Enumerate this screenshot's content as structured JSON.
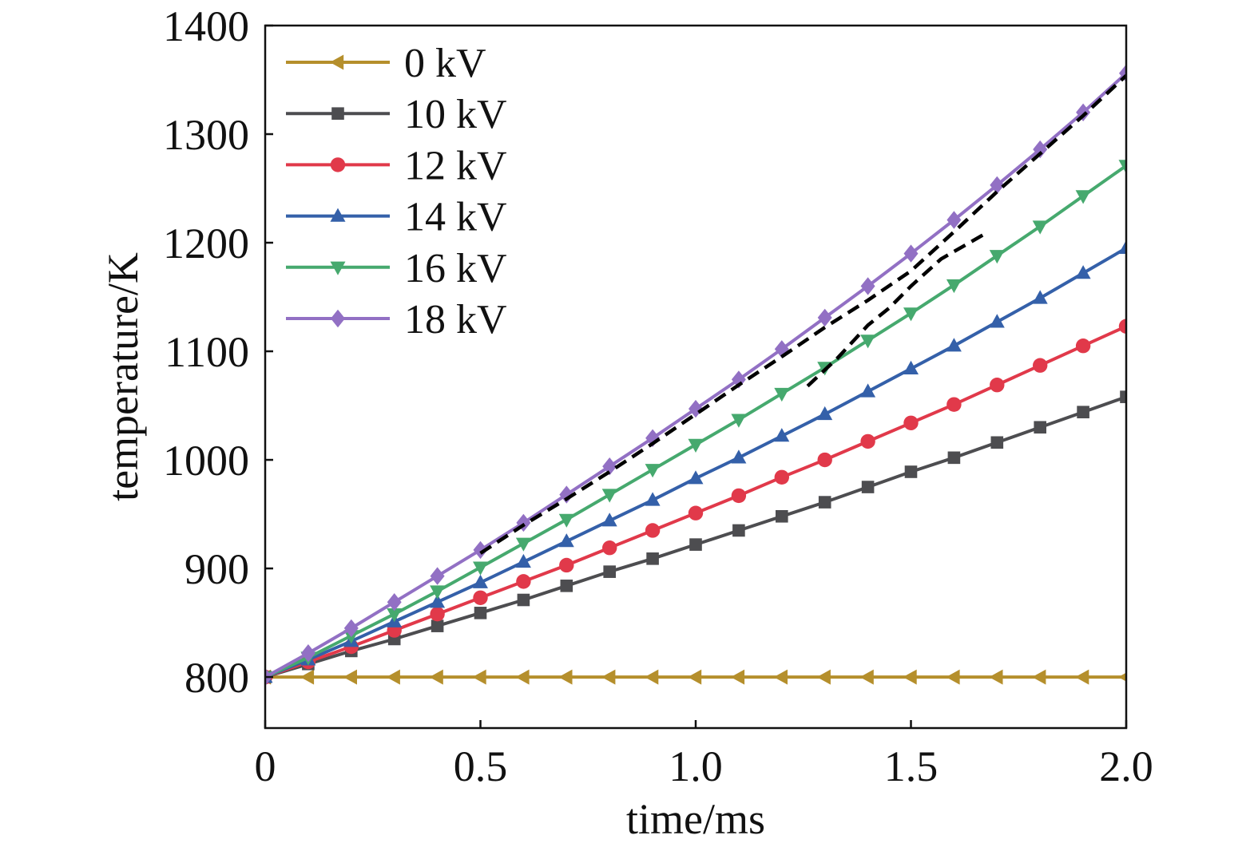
{
  "chart_data": {
    "type": "line",
    "xlabel": "time/ms",
    "ylabel": "temperature/K",
    "xlim": [
      0,
      2.0
    ],
    "ylim": [
      753,
      1400
    ],
    "x_ticks": [
      0,
      0.5,
      1.0,
      1.5,
      2.0
    ],
    "x_tick_labels": [
      "0",
      "0.5",
      "1.0",
      "1.5",
      "2.0"
    ],
    "y_ticks": [
      800,
      900,
      1000,
      1100,
      1200,
      1300,
      1400
    ],
    "y_tick_labels": [
      "800",
      "900",
      "1000",
      "1100",
      "1200",
      "1300",
      "1400"
    ],
    "grid": false,
    "legend": {
      "placement": "top-left"
    },
    "x": [
      0,
      0.1,
      0.2,
      0.3,
      0.4,
      0.5,
      0.6,
      0.7,
      0.8,
      0.9,
      1.0,
      1.1,
      1.2,
      1.3,
      1.4,
      1.5,
      1.6,
      1.7,
      1.8,
      1.9,
      2.0
    ],
    "series": [
      {
        "name": "0 kV",
        "color": "#b58f2c",
        "marker": "triangle-left",
        "values": [
          800,
          800,
          800,
          800,
          800,
          800,
          800,
          800,
          800,
          800,
          800,
          800,
          800,
          800,
          800,
          800,
          800,
          800,
          800,
          800,
          800
        ]
      },
      {
        "name": "10 kV",
        "color": "#4d4d50",
        "marker": "square",
        "values": [
          800,
          812,
          824,
          835,
          847,
          859,
          871,
          884,
          897,
          909,
          922,
          935,
          948,
          961,
          975,
          989,
          1002,
          1016,
          1030,
          1044,
          1058
        ]
      },
      {
        "name": "12 kV",
        "color": "#e1394a",
        "marker": "circle",
        "values": [
          800,
          814,
          828,
          843,
          858,
          873,
          888,
          903,
          919,
          935,
          951,
          967,
          984,
          1000,
          1017,
          1034,
          1051,
          1069,
          1087,
          1105,
          1123
        ]
      },
      {
        "name": "14 kV",
        "color": "#3460a9",
        "marker": "triangle-up",
        "values": [
          800,
          816,
          833,
          851,
          869,
          887,
          906,
          925,
          944,
          963,
          983,
          1002,
          1022,
          1042,
          1063,
          1084,
          1105,
          1127,
          1149,
          1172,
          1195
        ]
      },
      {
        "name": "16 kV",
        "color": "#46a96e",
        "marker": "triangle-down",
        "values": [
          800,
          818,
          838,
          858,
          879,
          901,
          923,
          945,
          968,
          991,
          1014,
          1037,
          1061,
          1085,
          1110,
          1135,
          1161,
          1188,
          1215,
          1243,
          1271
        ]
      },
      {
        "name": "18 kV",
        "color": "#9270c4",
        "marker": "diamond",
        "values": [
          800,
          822,
          845,
          869,
          893,
          917,
          942,
          968,
          994,
          1020,
          1047,
          1074,
          1102,
          1131,
          1160,
          1190,
          1221,
          1253,
          1286,
          1320,
          1356
        ]
      }
    ],
    "dashed_lines": [
      {
        "color": "#000000",
        "style": "dashed",
        "x": [
          0.5,
          0.6,
          0.7,
          0.8,
          0.9,
          1.0,
          1.1,
          1.2,
          1.3,
          1.4,
          1.5,
          1.6,
          1.7,
          1.8,
          1.9,
          2.0
        ],
        "y": [
          914,
          940,
          964,
          989,
          1015,
          1042,
          1069,
          1095,
          1122,
          1147,
          1174,
          1210,
          1247,
          1282,
          1317,
          1354
        ]
      },
      {
        "color": "#000000",
        "style": "dashed",
        "x": [
          1.26,
          1.33,
          1.4,
          1.45,
          1.5,
          1.57,
          1.68
        ],
        "y": [
          1068,
          1094,
          1124,
          1140,
          1160,
          1185,
          1210
        ]
      }
    ]
  }
}
